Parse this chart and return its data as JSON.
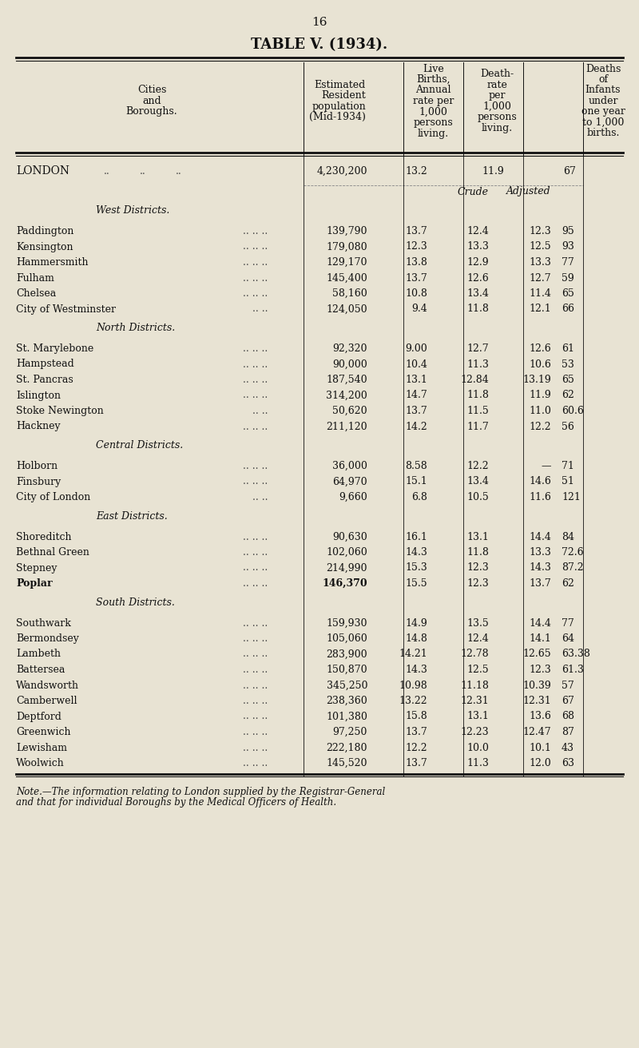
{
  "page_number": "16",
  "title": "TABLE V. (1934).",
  "bg_color": "#e8e3d3",
  "sections": [
    {
      "section_title": "West Districts.",
      "rows": [
        {
          "name": "Paddington",
          "dots": ".. .. ..",
          "pop": "139,790",
          "births": "13.7",
          "crude": "12.4",
          "adjusted": "12.3",
          "infant": "95"
        },
        {
          "name": "Kensington",
          "dots": ".. .. ..",
          "pop": "179,080",
          "births": "12.3",
          "crude": "13.3",
          "adjusted": "12.5",
          "infant": "93"
        },
        {
          "name": "Hammersmith",
          "dots": ".. .. ..",
          "pop": "129,170",
          "births": "13.8",
          "crude": "12.9",
          "adjusted": "13.3",
          "infant": "77"
        },
        {
          "name": "Fulham",
          "dots": ".. .. ..",
          "pop": "145,400",
          "births": "13.7",
          "crude": "12.6",
          "adjusted": "12.7",
          "infant": "59"
        },
        {
          "name": "Chelsea",
          "dots": ".. .. ..",
          "pop": "58,160",
          "births": "10.8",
          "crude": "13.4",
          "adjusted": "11.4",
          "infant": "65"
        },
        {
          "name": "City of Westminster",
          "dots": ".. ..",
          "pop": "124,050",
          "births": "9.4",
          "crude": "11.8",
          "adjusted": "12.1",
          "infant": "66"
        }
      ]
    },
    {
      "section_title": "North Districts.",
      "rows": [
        {
          "name": "St. Marylebone",
          "dots": ".. .. ..",
          "pop": "92,320",
          "births": "9.00",
          "crude": "12.7",
          "adjusted": "12.6",
          "infant": "61"
        },
        {
          "name": "Hampstead",
          "dots": ".. .. ..",
          "pop": "90,000",
          "births": "10.4",
          "crude": "11.3",
          "adjusted": "10.6",
          "infant": "53"
        },
        {
          "name": "St. Pancras",
          "dots": ".. .. ..",
          "pop": "187,540",
          "births": "13.1",
          "crude": "12.84",
          "adjusted": "13.19",
          "infant": "65"
        },
        {
          "name": "Islington",
          "dots": ".. .. ..",
          "pop": "314,200",
          "births": "14.7",
          "crude": "11.8",
          "adjusted": "11.9",
          "infant": "62"
        },
        {
          "name": "Stoke Newington",
          "dots": ".. ..",
          "pop": "50,620",
          "births": "13.7",
          "crude": "11.5",
          "adjusted": "11.0",
          "infant": "60.6"
        },
        {
          "name": "Hackney",
          "dots": ".. .. ..",
          "pop": "211,120",
          "births": "14.2",
          "crude": "11.7",
          "adjusted": "12.2",
          "infant": "56"
        }
      ]
    },
    {
      "section_title": "Central Districts.",
      "rows": [
        {
          "name": "Holborn",
          "dots": ".. .. ..",
          "pop": "36,000",
          "births": "8.58",
          "crude": "12.2",
          "adjusted": "—",
          "infant": "71"
        },
        {
          "name": "Finsbury",
          "dots": ".. .. ..",
          "pop": "64,970",
          "births": "15.1",
          "crude": "13.4",
          "adjusted": "14.6",
          "infant": "51"
        },
        {
          "name": "City of London",
          "dots": ".. ..",
          "pop": "9,660",
          "births": "6.8",
          "crude": "10.5",
          "adjusted": "11.6",
          "infant": "121"
        }
      ]
    },
    {
      "section_title": "East Districts.",
      "rows": [
        {
          "name": "Shoreditch",
          "dots": ".. .. ..",
          "pop": "90,630",
          "births": "16.1",
          "crude": "13.1",
          "adjusted": "14.4",
          "infant": "84"
        },
        {
          "name": "Bethnal Green",
          "dots": ".. .. ..",
          "pop": "102,060",
          "births": "14.3",
          "crude": "11.8",
          "adjusted": "13.3",
          "infant": "72.6"
        },
        {
          "name": "Stepney",
          "dots": ".. .. ..",
          "pop": "214,990",
          "births": "15.3",
          "crude": "12.3",
          "adjusted": "14.3",
          "infant": "87.2"
        },
        {
          "name": "Poplar",
          "dots": ".. .. ..",
          "pop": "146,370",
          "births": "15.5",
          "crude": "12.3",
          "adjusted": "13.7",
          "infant": "62",
          "bold": true
        }
      ]
    },
    {
      "section_title": "South Districts.",
      "rows": [
        {
          "name": "Southwark",
          "dots": ".. .. ..",
          "pop": "159,930",
          "births": "14.9",
          "crude": "13.5",
          "adjusted": "14.4",
          "infant": "77"
        },
        {
          "name": "Bermondsey",
          "dots": ".. .. ..",
          "pop": "105,060",
          "births": "14.8",
          "crude": "12.4",
          "adjusted": "14.1",
          "infant": "64"
        },
        {
          "name": "Lambeth",
          "dots": ".. .. ..",
          "pop": "283,900",
          "births": "14.21",
          "crude": "12.78",
          "adjusted": "12.65",
          "infant": "63.38"
        },
        {
          "name": "Battersea",
          "dots": ".. .. ..",
          "pop": "150,870",
          "births": "14.3",
          "crude": "12.5",
          "adjusted": "12.3",
          "infant": "61.3"
        },
        {
          "name": "Wandsworth",
          "dots": ".. .. ..",
          "pop": "345,250",
          "births": "10.98",
          "crude": "11.18",
          "adjusted": "10.39",
          "infant": "57"
        },
        {
          "name": "Camberwell",
          "dots": ".. .. ..",
          "pop": "238,360",
          "births": "13.22",
          "crude": "12.31",
          "adjusted": "12.31",
          "infant": "67"
        },
        {
          "name": "Deptford",
          "dots": ".. .. ..",
          "pop": "101,380",
          "births": "15.8",
          "crude": "13.1",
          "adjusted": "13.6",
          "infant": "68"
        },
        {
          "name": "Greenwich",
          "dots": ".. .. ..",
          "pop": "97,250",
          "births": "13.7",
          "crude": "12.23",
          "adjusted": "12.47",
          "infant": "87"
        },
        {
          "name": "Lewisham",
          "dots": ".. .. ..",
          "pop": "222,180",
          "births": "12.2",
          "crude": "10.0",
          "adjusted": "10.1",
          "infant": "43"
        },
        {
          "name": "Woolwich",
          "dots": ".. .. ..",
          "pop": "145,520",
          "births": "13.7",
          "crude": "11.3",
          "adjusted": "12.0",
          "infant": "63"
        }
      ]
    }
  ],
  "footnote_line1": "Note.—The information relating to London supplied by the Registrar-General",
  "footnote_line2": "and that for individual Boroughs by the Medical Officers of Health."
}
